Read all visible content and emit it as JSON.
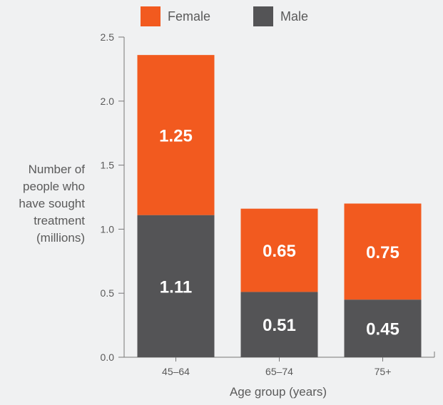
{
  "chart_data": {
    "type": "bar",
    "stacked": true,
    "categories": [
      "45–64",
      "65–74",
      "75+"
    ],
    "series": [
      {
        "name": "Male",
        "values": [
          1.11,
          0.51,
          0.45
        ],
        "color": "#545456",
        "labels": [
          "1.11",
          "0.51",
          "0.45"
        ]
      },
      {
        "name": "Female",
        "values": [
          1.25,
          0.65,
          0.75
        ],
        "color": "#f25a1f",
        "labels": [
          "1.25",
          "0.65",
          "0.75"
        ]
      }
    ],
    "ylabel_lines": [
      "Number of",
      "people who",
      "have sought",
      "treatment",
      "(millions)"
    ],
    "xlabel": "Age group (years)",
    "ylim": [
      0,
      2.5
    ],
    "yticks": [
      "0.0",
      "0.5",
      "1.0",
      "1.5",
      "2.0",
      "2.5"
    ],
    "legend": {
      "placement": "top",
      "entries": [
        "Female",
        "Male"
      ]
    },
    "grid": false
  }
}
